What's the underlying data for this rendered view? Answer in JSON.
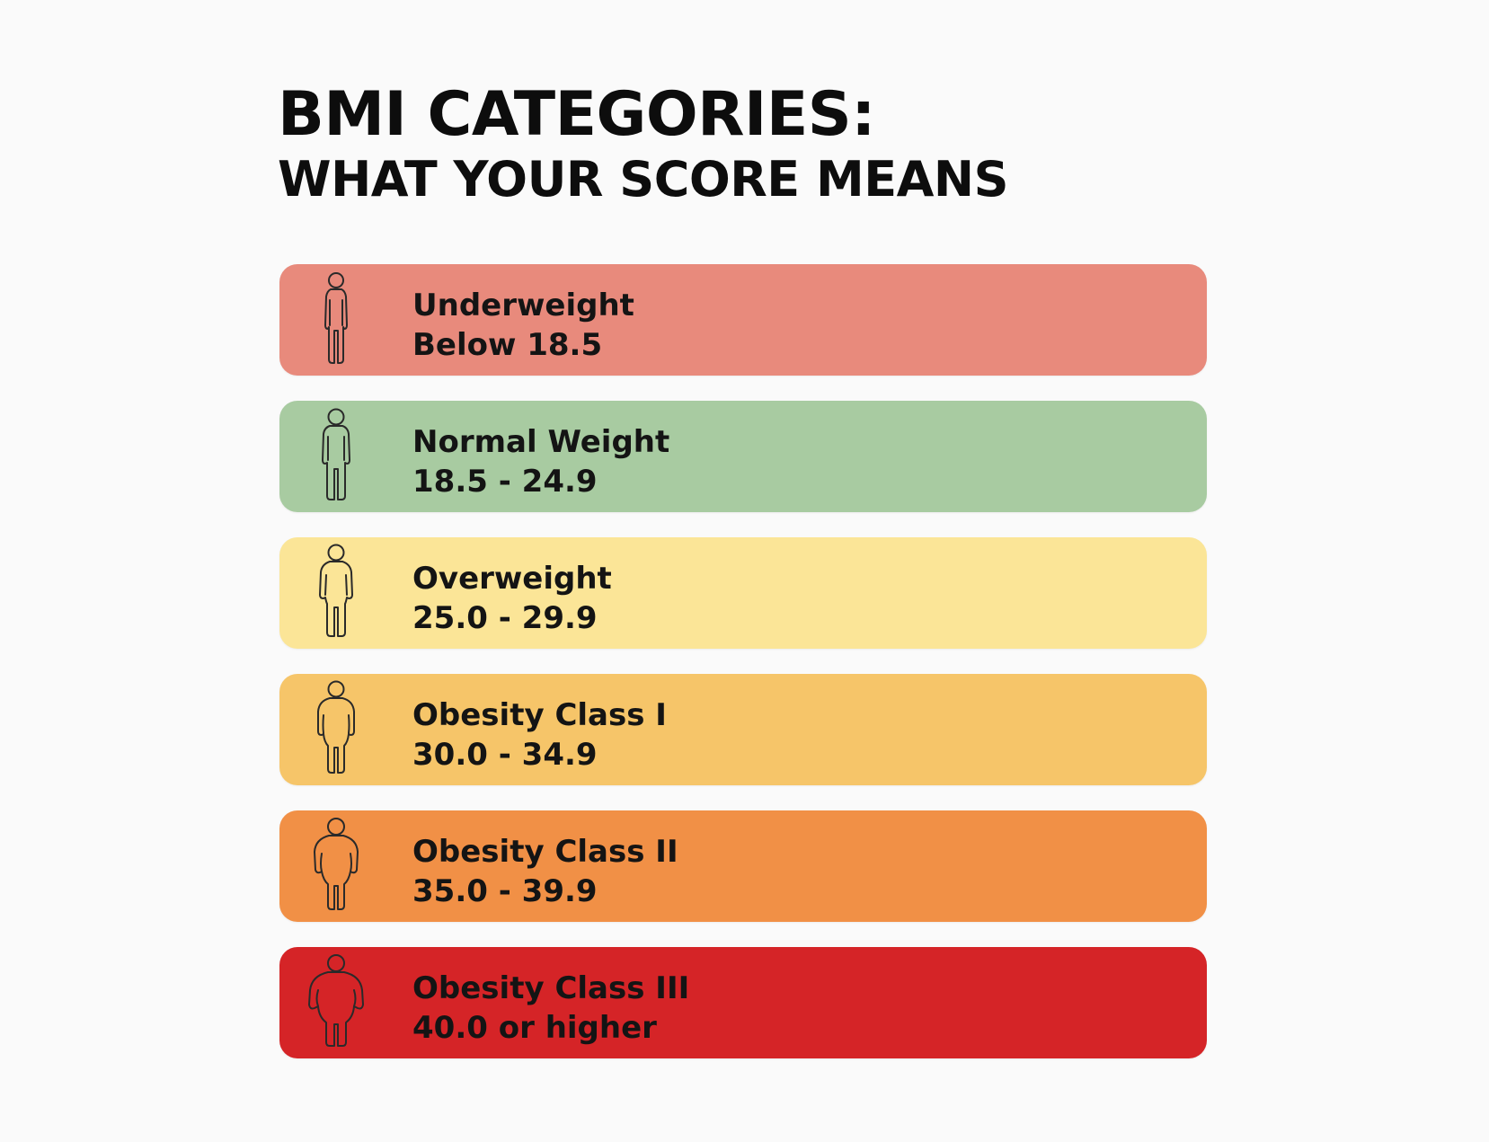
{
  "header": {
    "title": "BMI CATEGORIES:",
    "subtitle": "WHAT YOUR SCORE MEANS"
  },
  "categories": [
    {
      "name": "Underweight",
      "range": "Below 18.5",
      "color": "#e88a7c",
      "icon": "slim-person-icon"
    },
    {
      "name": "Normal Weight",
      "range": "18.5 - 24.9",
      "color": "#a8cba1",
      "icon": "normal-person-icon"
    },
    {
      "name": "Overweight",
      "range": "25.0 - 29.9",
      "color": "#fbe597",
      "icon": "overweight-person-icon"
    },
    {
      "name": "Obesity Class I",
      "range": "30.0 - 34.9",
      "color": "#f6c569",
      "icon": "obese-1-person-icon"
    },
    {
      "name": "Obesity Class II",
      "range": "35.0 - 39.9",
      "color": "#f19046",
      "icon": "obese-2-person-icon"
    },
    {
      "name": "Obesity Class III",
      "range": "40.0 or higher",
      "color": "#d52427",
      "icon": "obese-3-person-icon"
    }
  ]
}
